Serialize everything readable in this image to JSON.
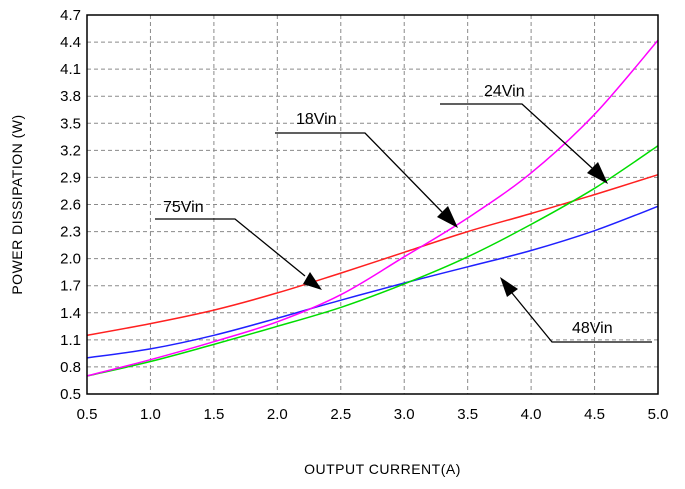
{
  "chart_data": {
    "type": "line",
    "title": "",
    "xlabel": "OUTPUT CURRENT(A)",
    "ylabel": "POWER DISSIPATION (W)",
    "xlim": [
      0.5,
      5.0
    ],
    "ylim": [
      0.5,
      4.7
    ],
    "x_ticks": [
      0.5,
      1.0,
      1.5,
      2.0,
      2.5,
      3.0,
      3.5,
      4.0,
      4.5,
      5.0
    ],
    "x_tick_labels": [
      "0.5",
      "1.0",
      "1.5",
      "2.0",
      "2.5",
      "3.0",
      "3.5",
      "4.0",
      "4.5",
      "5.0"
    ],
    "y_ticks": [
      0.5,
      0.8,
      1.1,
      1.4,
      1.7,
      2.0,
      2.3,
      2.6,
      2.9,
      3.2,
      3.5,
      3.8,
      4.1,
      4.4,
      4.7
    ],
    "y_tick_labels": [
      "0.5",
      "0.8",
      "1.1",
      "1.4",
      "1.7",
      "2.0",
      "2.3",
      "2.6",
      "2.9",
      "3.2",
      "3.5",
      "3.8",
      "4.1",
      "4.4",
      "4.7"
    ],
    "grid": true,
    "legend": "none",
    "x": [
      0.5,
      1.0,
      1.5,
      2.0,
      2.5,
      3.0,
      3.5,
      4.0,
      4.5,
      5.0
    ],
    "series": [
      {
        "name": "75Vin",
        "color": "#ff2020",
        "values": [
          1.15,
          1.28,
          1.43,
          1.62,
          1.84,
          2.07,
          2.3,
          2.5,
          2.71,
          2.93
        ]
      },
      {
        "name": "48Vin",
        "color": "#2020ff",
        "values": [
          0.9,
          1.0,
          1.15,
          1.34,
          1.54,
          1.73,
          1.91,
          2.09,
          2.31,
          2.58
        ]
      },
      {
        "name": "24Vin",
        "color": "#00dd00",
        "values": [
          0.7,
          0.86,
          1.05,
          1.25,
          1.46,
          1.72,
          2.02,
          2.38,
          2.78,
          3.25
        ]
      },
      {
        "name": "18Vin",
        "color": "#ff00ff",
        "values": [
          0.7,
          0.88,
          1.08,
          1.3,
          1.6,
          2.02,
          2.45,
          2.95,
          3.6,
          4.42
        ]
      }
    ],
    "annotations": [
      {
        "text": "75Vin",
        "target_series": "75Vin",
        "point": [
          2.4,
          1.78
        ]
      },
      {
        "text": "18Vin",
        "target_series": "18Vin",
        "point": [
          3.48,
          2.4
        ]
      },
      {
        "text": "24Vin",
        "target_series": "24Vin",
        "point": [
          4.55,
          2.88
        ]
      },
      {
        "text": "48Vin",
        "target_series": "48Vin",
        "point": [
          3.75,
          2.0
        ]
      }
    ]
  }
}
